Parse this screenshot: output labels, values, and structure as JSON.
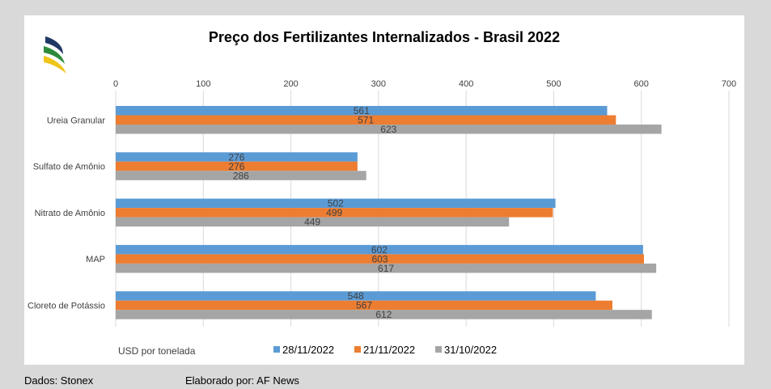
{
  "chart_data": {
    "type": "bar",
    "orientation": "horizontal",
    "title": "Preço dos Fertilizantes Internalizados  - Brasil 2022",
    "categories": [
      "Ureia Granular",
      "Sulfato de Amônio",
      "Nitrato de Amônio",
      "MAP",
      "Cloreto de Potássio"
    ],
    "series": [
      {
        "name": "28/11/2022",
        "color": "#5b9bd5",
        "values": [
          561,
          276,
          502,
          602,
          548
        ]
      },
      {
        "name": "21/11/2022",
        "color": "#ed7d31",
        "values": [
          571,
          276,
          499,
          603,
          567
        ]
      },
      {
        "name": "31/10/2022",
        "color": "#a5a5a5",
        "values": [
          623,
          286,
          449,
          617,
          612
        ]
      }
    ],
    "xlim": [
      0,
      700
    ],
    "x_ticks": [
      0,
      100,
      200,
      300,
      400,
      500,
      600,
      700
    ],
    "axis_position": "top",
    "xlabel": "USD por tonelada",
    "grid": true,
    "legend_position": "bottom"
  },
  "footer": {
    "source": "Dados: Stonex",
    "author": "Elaborado por: AF News"
  },
  "logo": {
    "colors": [
      "#1f3864",
      "#2e8b3c",
      "#f0c419"
    ]
  }
}
